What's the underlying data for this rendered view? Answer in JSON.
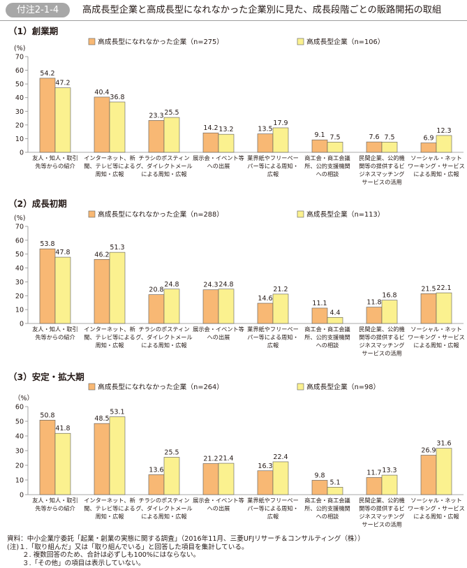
{
  "header": {
    "badge": "付注2-1-4",
    "title": "高成長型企業と高成長型になれなかった企業別に見た、成長段階ごとの販路開拓の取組"
  },
  "colors": {
    "orange": "#f8b874",
    "yellow": "#fbf18f",
    "stroke": "#5a5a5a",
    "grid": "#8c8c8c"
  },
  "categories": [
    [
      "友人・知人・取引",
      "先等からの紹介"
    ],
    [
      "インターネット、新",
      "聞、テレビ等による",
      "周知・広報"
    ],
    [
      "チラシのポスティン",
      "グ、ダイレクトメール",
      "による周知・広報"
    ],
    [
      "展示会・イベント等",
      "への出展"
    ],
    [
      "業界紙やフリーペー",
      "パー等による周知・",
      "広報"
    ],
    [
      "商工会・商工会議",
      "所、公的支援機関",
      "への相談"
    ],
    [
      "民間企業、公的機",
      "関等の提供するビ",
      "ジネスマッチング",
      "サービスの活用"
    ],
    [
      "ソーシャル・ネット",
      "ワーキング・サービス",
      "による周知・広報"
    ]
  ],
  "chart_data": [
    {
      "type": "bar",
      "title": "（1）創業期",
      "ylabel": "(%)",
      "ylim": [
        0,
        70
      ],
      "yticks": [
        0,
        10,
        20,
        30,
        40,
        50,
        60,
        70
      ],
      "series": [
        {
          "name": "高成長型になれなかった企業（n=275）",
          "values": [
            54.2,
            40.4,
            23.3,
            14.2,
            13.5,
            9.1,
            7.6,
            6.9
          ]
        },
        {
          "name": "高成長型企業（n=106）",
          "values": [
            47.2,
            36.8,
            25.5,
            13.2,
            17.9,
            7.5,
            7.5,
            12.3
          ]
        }
      ]
    },
    {
      "type": "bar",
      "title": "（2）成長初期",
      "ylabel": "(%)",
      "ylim": [
        0,
        70
      ],
      "yticks": [
        0,
        10,
        20,
        30,
        40,
        50,
        60,
        70
      ],
      "series": [
        {
          "name": "高成長型になれなかった企業（n=288）",
          "values": [
            53.8,
            46.2,
            20.8,
            24.3,
            14.6,
            11.1,
            11.8,
            21.5
          ]
        },
        {
          "name": "高成長型企業（n=113）",
          "values": [
            47.8,
            51.3,
            24.8,
            24.8,
            21.2,
            4.4,
            16.8,
            22.1
          ]
        }
      ]
    },
    {
      "type": "bar",
      "title": "（3）安定・拡大期",
      "ylabel": "（%）",
      "ylim": [
        0,
        60
      ],
      "yticks": [
        0,
        10,
        20,
        30,
        40,
        50,
        60
      ],
      "series": [
        {
          "name": "高成長型になれなかった企業（n=264）",
          "values": [
            50.8,
            48.5,
            13.6,
            21.2,
            16.3,
            9.8,
            11.7,
            26.9
          ]
        },
        {
          "name": "高成長型企業（n=98）",
          "values": [
            41.8,
            53.1,
            25.5,
            21.4,
            22.4,
            5.1,
            13.3,
            31.6
          ]
        }
      ]
    }
  ],
  "notes": {
    "source": "資料：中小企業庁委託「起業・創業の実態に関する調査」（2016年11月、三菱UFJリサーチ＆コンサルティング（株））",
    "note1": "(注)１.「取り組んだ」又は「取り組んでいる」と回答した項目を集計している。",
    "note2": "２. 複数回答のため、合計は必ずしも100%にはならない。",
    "note3": "３.「その他」の項目は表示していない。"
  }
}
